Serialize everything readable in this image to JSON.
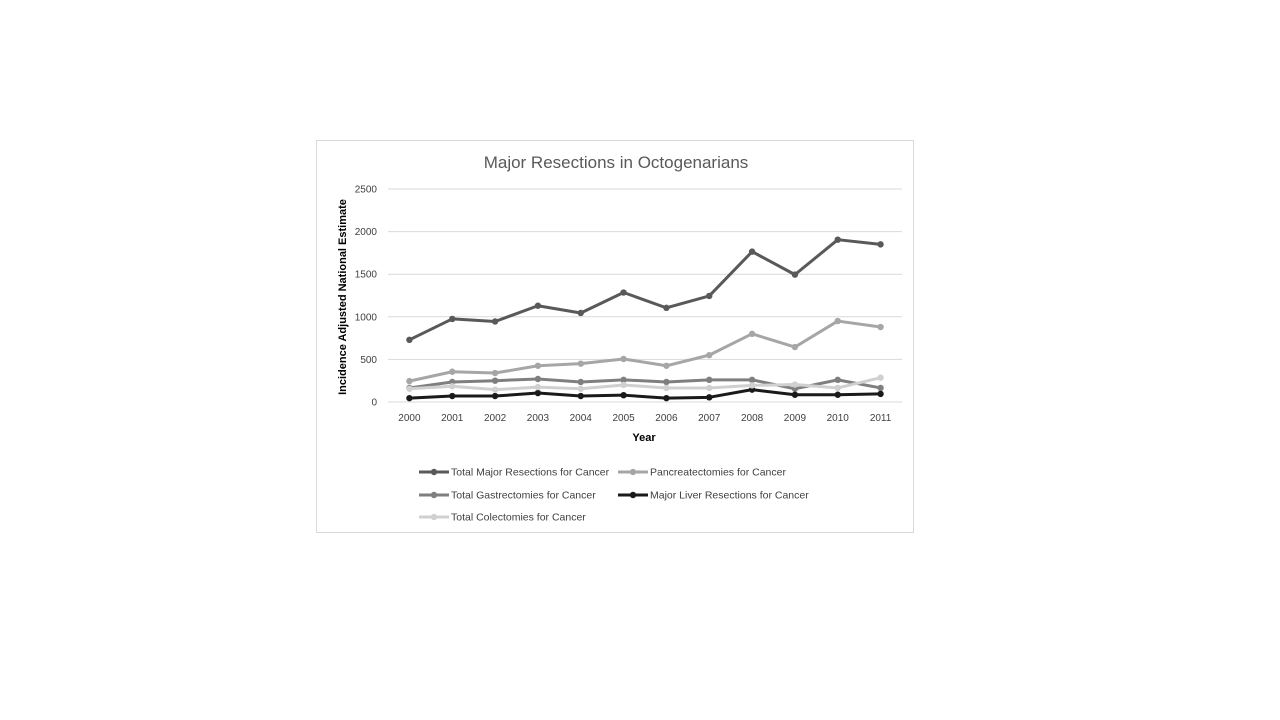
{
  "chart_data": {
    "type": "line",
    "title": "Major Resections in Octogenarians",
    "xlabel": "Year",
    "ylabel": "Incidence Adjusted National Estimate",
    "ylim": [
      0,
      2500
    ],
    "yticks": [
      "0",
      "500",
      "1000",
      "1500",
      "2000",
      "2500"
    ],
    "categories": [
      "2000",
      "2001",
      "2002",
      "2003",
      "2004",
      "2005",
      "2006",
      "2007",
      "2008",
      "2009",
      "2010",
      "2011"
    ],
    "grid": "horizontal",
    "legend_position": "bottom",
    "series": [
      {
        "name": "Total Major Resections for Cancer",
        "color": "#595959",
        "values": [
          730,
          975,
          945,
          1130,
          1045,
          1285,
          1105,
          1245,
          1765,
          1495,
          1905,
          1850
        ]
      },
      {
        "name": "Pancreatectomies for Cancer",
        "color": "#a6a6a6",
        "values": [
          245,
          355,
          340,
          425,
          450,
          505,
          425,
          550,
          800,
          645,
          950,
          880
        ]
      },
      {
        "name": "Total Gastrectomies for Cancer",
        "color": "#7f7f7f",
        "values": [
          165,
          235,
          250,
          270,
          235,
          260,
          235,
          260,
          260,
          155,
          260,
          165
        ]
      },
      {
        "name": "Major Liver Resections for Cancer",
        "color": "#1a1a1a",
        "values": [
          45,
          70,
          70,
          105,
          70,
          80,
          45,
          55,
          145,
          85,
          85,
          95
        ]
      },
      {
        "name": "Total Colectomies for Cancer",
        "color": "#d0d0d0",
        "values": [
          155,
          185,
          145,
          175,
          155,
          200,
          165,
          165,
          195,
          205,
          165,
          285
        ]
      }
    ]
  }
}
